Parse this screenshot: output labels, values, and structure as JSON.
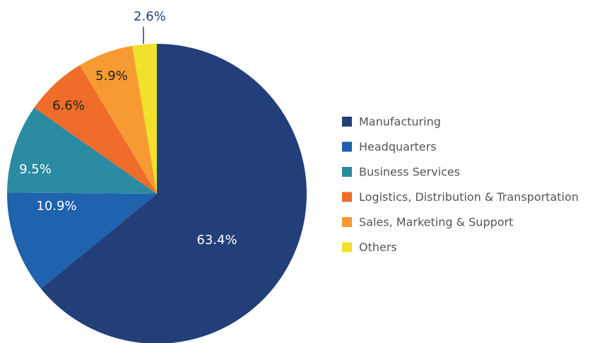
{
  "chart_data": {
    "type": "pie",
    "categories": [
      "Manufacturing",
      "Headquarters",
      "Business Services",
      "Logistics, Distribution & Transportation",
      "Sales, Marketing & Support",
      "Others"
    ],
    "values": [
      63.4,
      10.9,
      9.5,
      6.6,
      5.9,
      2.6
    ],
    "value_labels": [
      "63.4%",
      "10.9%",
      "9.5%",
      "6.6%",
      "5.9%",
      "2.6%"
    ],
    "colors": [
      "#233f7a",
      "#1f62ae",
      "#2a8ba3",
      "#ef6c2a",
      "#f79a32",
      "#f1e02c"
    ],
    "legend": "right"
  }
}
